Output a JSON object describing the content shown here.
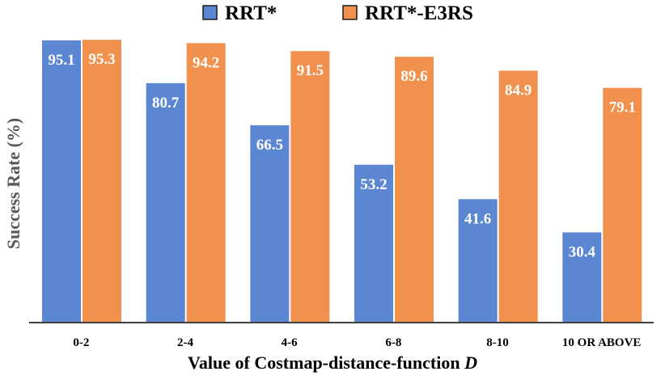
{
  "chart_data": {
    "type": "bar",
    "title": "",
    "xlabel_prefix": "Value of Costmap-distance-function ",
    "xlabel_var": "D",
    "ylabel": "Success Rate (%)",
    "ylim": [
      0,
      100
    ],
    "grid": false,
    "legend_position": "top-center",
    "categories": [
      "0-2",
      "2-4",
      "4-6",
      "6-8",
      "8-10",
      "10 OR ABOVE"
    ],
    "series": [
      {
        "name": "RRT*",
        "color": "#5B86D1",
        "values": [
          95.1,
          80.7,
          66.5,
          53.2,
          41.6,
          30.4
        ]
      },
      {
        "name": "RRT*-E3RS",
        "color": "#F0924E",
        "values": [
          95.3,
          94.2,
          91.5,
          89.6,
          84.9,
          79.1
        ]
      }
    ],
    "value_labels": [
      [
        "95.1",
        "80.7",
        "66.5",
        "53.2",
        "41.6",
        "30.4"
      ],
      [
        "95.3",
        "94.2",
        "91.5",
        "89.6",
        "84.9",
        "79.1"
      ]
    ]
  }
}
